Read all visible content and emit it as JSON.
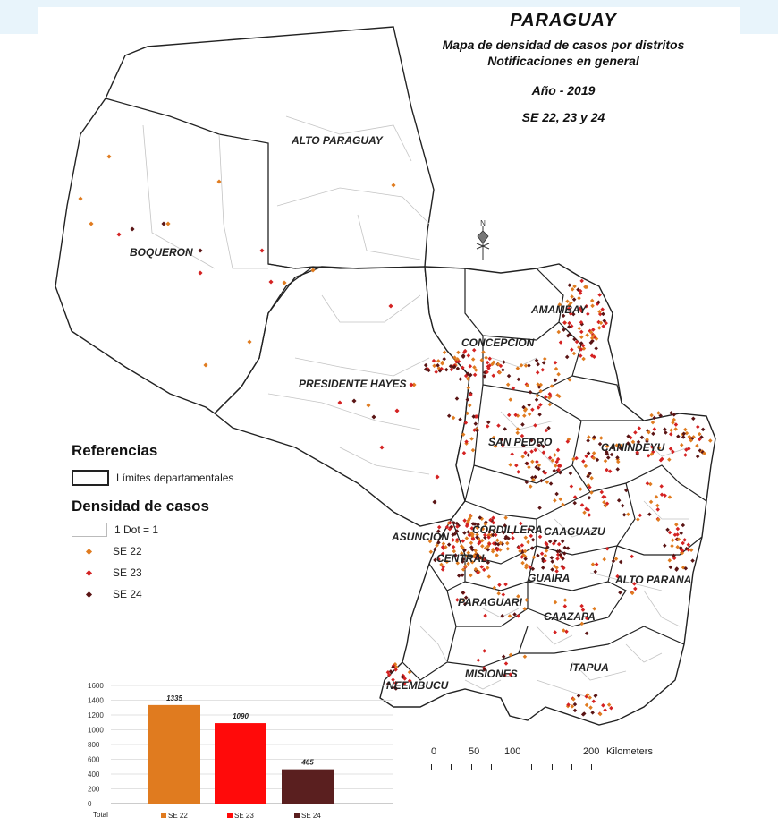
{
  "title": "PARAGUAY",
  "subtitle_line1": "Mapa de densidad de casos por distritos",
  "subtitle_line2": "Notificaciones en general",
  "year": "Año - 2019",
  "weeks": "SE 22, 23 y 24",
  "colors": {
    "se22": "#e07b1f",
    "se23": "#d42222",
    "se24": "#5a1414",
    "border": "#222222",
    "district": "#bdbdbd"
  },
  "departments": [
    {
      "id": "alto-paraguay",
      "label": "ALTO PARAGUAY"
    },
    {
      "id": "boqueron",
      "label": "BOQUERON"
    },
    {
      "id": "presidente-hayes",
      "label": "PRESIDENTE HAYES"
    },
    {
      "id": "concepcion",
      "label": "CONCEPCION"
    },
    {
      "id": "amambay",
      "label": "AMAMBAY"
    },
    {
      "id": "san-pedro",
      "label": "SAN PEDRO"
    },
    {
      "id": "canindeyu",
      "label": "CANINDEYU"
    },
    {
      "id": "asuncion",
      "label": "ASUNCION"
    },
    {
      "id": "cordillera",
      "label": "CORDILLERA"
    },
    {
      "id": "caaguazu",
      "label": "CAAGUAZU"
    },
    {
      "id": "central",
      "label": "CENTRAL"
    },
    {
      "id": "guaira",
      "label": "GUAIRA"
    },
    {
      "id": "alto-parana",
      "label": "ALTO PARANA"
    },
    {
      "id": "paraguari",
      "label": "PARAGUARI"
    },
    {
      "id": "caazapa",
      "label": "CAAZAPA"
    },
    {
      "id": "misiones",
      "label": "MISIONES"
    },
    {
      "id": "itapua",
      "label": "ITAPUA"
    },
    {
      "id": "neembucu",
      "label": "NEEMBUCU"
    }
  ],
  "north_label": "N",
  "legend": {
    "heading": "Referencias",
    "dept_limits": "Límites departamentales",
    "density_heading": "Densidad de casos",
    "dot_equals": "1 Dot = 1",
    "items": [
      {
        "label": "SE 22",
        "color": "#e07b1f"
      },
      {
        "label": "SE 23",
        "color": "#d42222"
      },
      {
        "label": "SE 24",
        "color": "#5a1414"
      }
    ]
  },
  "scale_bar": {
    "ticks": [
      "0",
      "50",
      "100",
      "200"
    ],
    "unit": "Kilometers"
  },
  "chart_data": {
    "type": "bar",
    "categories": [
      "Total"
    ],
    "series": [
      {
        "name": "SE 22",
        "values": [
          1335
        ],
        "color": "#e07b1f"
      },
      {
        "name": "SE 23",
        "values": [
          1090
        ],
        "color": "#ff0a0a"
      },
      {
        "name": "SE 24",
        "values": [
          465
        ],
        "color": "#5a1f1f"
      }
    ],
    "y_ticks": [
      "0",
      "200",
      "400",
      "600",
      "800",
      "1000",
      "1200",
      "1400",
      "1600"
    ],
    "ylim": [
      0,
      1600
    ],
    "data_labels": [
      "1335",
      "1090",
      "465"
    ],
    "grid": true,
    "legend_placement": "bottom"
  }
}
